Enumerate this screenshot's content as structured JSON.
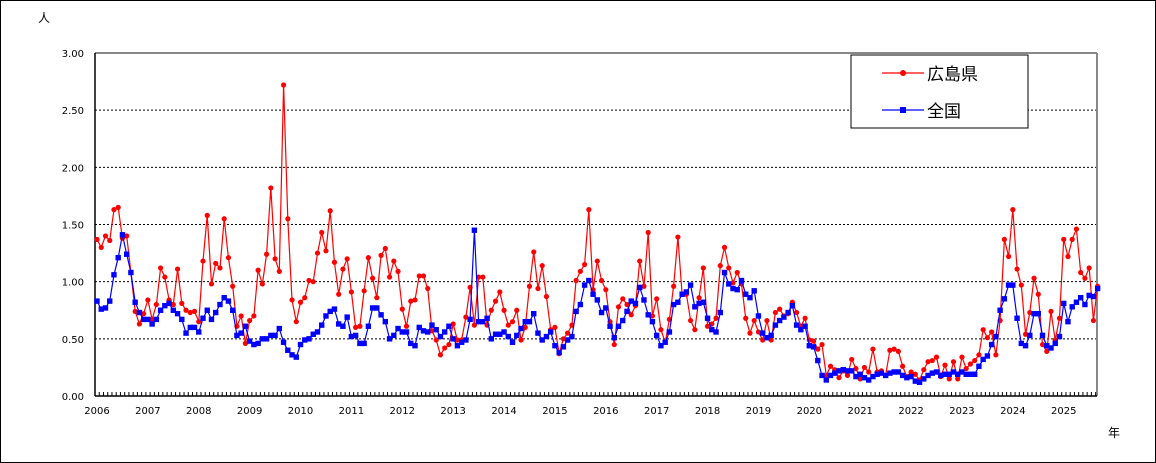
{
  "chart_data": {
    "type": "line",
    "title": "",
    "ylabel": "人",
    "xlabel": "年",
    "ylim": [
      0,
      3.0
    ],
    "yticks": [
      "0.00",
      "0.50",
      "1.00",
      "1.50",
      "2.00",
      "2.50",
      "3.00"
    ],
    "xticks": [
      "2006",
      "2007",
      "2008",
      "2009",
      "2010",
      "2011",
      "2012",
      "2013",
      "2014",
      "2015",
      "2016",
      "2017",
      "2018",
      "2019",
      "2020",
      "2021",
      "2022",
      "2023",
      "2024",
      "2025"
    ],
    "x_start": "2006-01",
    "x_interval": "month",
    "grid": "horizontal dashed",
    "legend_position": "top-right",
    "series": [
      {
        "name": "広島県",
        "color": "#ff0000",
        "marker": "circle",
        "values": [
          1.37,
          1.3,
          1.4,
          1.36,
          1.63,
          1.65,
          1.38,
          1.4,
          1.08,
          0.74,
          0.63,
          0.72,
          0.84,
          0.67,
          0.8,
          1.12,
          1.04,
          0.84,
          0.8,
          1.11,
          0.81,
          0.75,
          0.73,
          0.74,
          0.65,
          1.18,
          1.58,
          0.98,
          1.16,
          1.12,
          1.55,
          1.21,
          0.96,
          0.61,
          0.7,
          0.46,
          0.66,
          0.7,
          1.1,
          0.98,
          1.24,
          1.82,
          1.2,
          1.09,
          2.72,
          1.55,
          0.84,
          0.65,
          0.82,
          0.86,
          1.01,
          1.0,
          1.25,
          1.43,
          1.27,
          1.62,
          1.17,
          0.89,
          1.11,
          1.2,
          0.91,
          0.6,
          0.61,
          0.92,
          1.21,
          1.03,
          0.86,
          1.23,
          1.29,
          1.04,
          1.18,
          1.09,
          0.76,
          0.61,
          0.83,
          0.84,
          1.05,
          1.05,
          0.94,
          0.57,
          0.49,
          0.36,
          0.42,
          0.45,
          0.63,
          0.49,
          0.49,
          0.69,
          0.95,
          0.62,
          1.04,
          1.04,
          0.62,
          0.75,
          0.83,
          0.91,
          0.75,
          0.62,
          0.65,
          0.75,
          0.49,
          0.6,
          0.96,
          1.26,
          0.94,
          1.14,
          0.87,
          0.58,
          0.6,
          0.37,
          0.5,
          0.55,
          0.62,
          1.01,
          1.09,
          1.15,
          1.63,
          0.93,
          1.18,
          1.01,
          0.93,
          0.65,
          0.45,
          0.78,
          0.85,
          0.8,
          0.71,
          0.79,
          1.18,
          0.96,
          1.43,
          0.7,
          0.85,
          0.58,
          0.47,
          0.67,
          0.96,
          1.39,
          0.89,
          0.89,
          0.66,
          0.58,
          0.86,
          1.12,
          0.61,
          0.63,
          0.68,
          1.14,
          1.3,
          1.12,
          0.99,
          1.08,
          0.98,
          0.68,
          0.55,
          0.66,
          0.56,
          0.49,
          0.66,
          0.49,
          0.73,
          0.76,
          0.7,
          0.72,
          0.82,
          0.73,
          0.61,
          0.68,
          0.49,
          0.48,
          0.41,
          0.45,
          0.18,
          0.26,
          0.23,
          0.16,
          0.22,
          0.18,
          0.32,
          0.24,
          0.15,
          0.25,
          0.21,
          0.41,
          0.21,
          0.22,
          0.18,
          0.4,
          0.41,
          0.39,
          0.26,
          0.17,
          0.21,
          0.19,
          0.14,
          0.23,
          0.3,
          0.31,
          0.34,
          0.17,
          0.27,
          0.15,
          0.3,
          0.15,
          0.34,
          0.24,
          0.28,
          0.31,
          0.36,
          0.58,
          0.51,
          0.56,
          0.36,
          0.66,
          1.37,
          1.22,
          1.63,
          1.11,
          0.97,
          0.54,
          0.73,
          1.03,
          0.89,
          0.45,
          0.39,
          0.74,
          0.49,
          0.68,
          1.37,
          1.22,
          1.37,
          1.46,
          1.08,
          1.03,
          1.12,
          0.66,
          0.96
        ]
      },
      {
        "name": "全国",
        "color": "#0000ff",
        "marker": "square",
        "values": [
          0.83,
          0.76,
          0.77,
          0.83,
          1.06,
          1.21,
          1.41,
          1.24,
          1.08,
          0.82,
          0.73,
          0.67,
          0.67,
          0.63,
          0.67,
          0.75,
          0.79,
          0.81,
          0.75,
          0.72,
          0.67,
          0.55,
          0.6,
          0.6,
          0.56,
          0.68,
          0.75,
          0.67,
          0.73,
          0.8,
          0.86,
          0.83,
          0.75,
          0.53,
          0.55,
          0.61,
          0.48,
          0.45,
          0.46,
          0.5,
          0.5,
          0.53,
          0.53,
          0.59,
          0.47,
          0.4,
          0.36,
          0.34,
          0.45,
          0.49,
          0.5,
          0.54,
          0.56,
          0.62,
          0.7,
          0.74,
          0.76,
          0.63,
          0.61,
          0.69,
          0.52,
          0.53,
          0.46,
          0.46,
          0.61,
          0.77,
          0.77,
          0.71,
          0.65,
          0.5,
          0.53,
          0.59,
          0.56,
          0.56,
          0.46,
          0.44,
          0.6,
          0.57,
          0.56,
          0.62,
          0.58,
          0.52,
          0.56,
          0.61,
          0.5,
          0.44,
          0.47,
          0.49,
          0.67,
          1.45,
          0.65,
          0.65,
          0.68,
          0.5,
          0.54,
          0.54,
          0.56,
          0.52,
          0.47,
          0.53,
          0.59,
          0.65,
          0.65,
          0.72,
          0.55,
          0.49,
          0.52,
          0.56,
          0.44,
          0.38,
          0.43,
          0.49,
          0.52,
          0.74,
          0.8,
          0.97,
          1.01,
          0.89,
          0.84,
          0.73,
          0.77,
          0.61,
          0.51,
          0.61,
          0.66,
          0.74,
          0.83,
          0.81,
          0.95,
          0.84,
          0.71,
          0.65,
          0.53,
          0.44,
          0.47,
          0.56,
          0.8,
          0.82,
          0.89,
          0.91,
          0.97,
          0.78,
          0.81,
          0.82,
          0.68,
          0.58,
          0.56,
          0.73,
          1.08,
          0.98,
          0.94,
          0.93,
          1.01,
          0.89,
          0.86,
          0.92,
          0.7,
          0.55,
          0.51,
          0.53,
          0.62,
          0.66,
          0.69,
          0.73,
          0.79,
          0.62,
          0.58,
          0.61,
          0.44,
          0.43,
          0.31,
          0.18,
          0.14,
          0.18,
          0.2,
          0.22,
          0.23,
          0.22,
          0.22,
          0.17,
          0.19,
          0.16,
          0.14,
          0.17,
          0.19,
          0.2,
          0.18,
          0.2,
          0.21,
          0.21,
          0.18,
          0.16,
          0.17,
          0.13,
          0.12,
          0.15,
          0.18,
          0.2,
          0.21,
          0.18,
          0.19,
          0.19,
          0.21,
          0.19,
          0.21,
          0.19,
          0.19,
          0.19,
          0.26,
          0.32,
          0.35,
          0.45,
          0.52,
          0.75,
          0.85,
          0.97,
          0.97,
          0.68,
          0.46,
          0.44,
          0.53,
          0.72,
          0.72,
          0.53,
          0.44,
          0.42,
          0.46,
          0.52,
          0.81,
          0.65,
          0.78,
          0.82,
          0.86,
          0.8,
          0.88,
          0.87,
          0.94
        ]
      }
    ]
  }
}
